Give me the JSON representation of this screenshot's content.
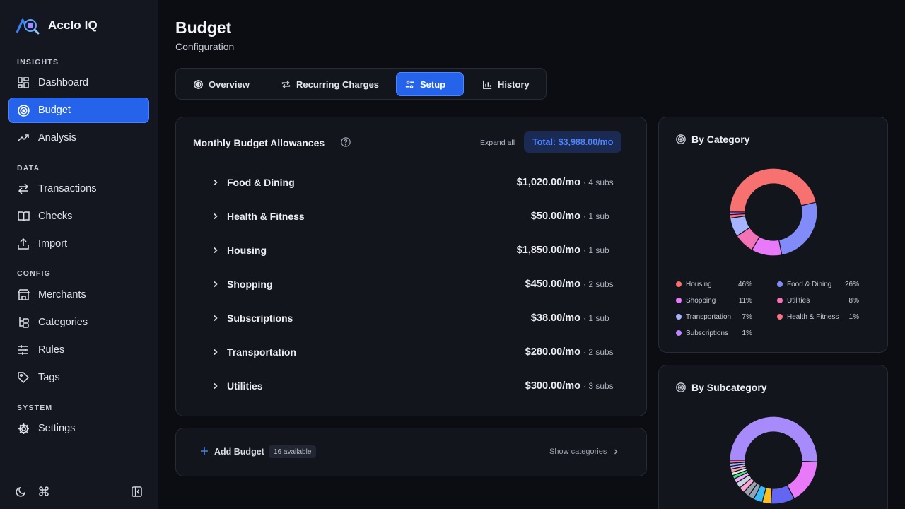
{
  "app": {
    "name": "Acclo IQ"
  },
  "sidebar": {
    "sections": {
      "insights": "INSIGHTS",
      "data": "DATA",
      "config": "CONFIG",
      "system": "SYSTEM"
    },
    "items": {
      "dashboard": "Dashboard",
      "budget": "Budget",
      "analysis": "Analysis",
      "transactions": "Transactions",
      "checks": "Checks",
      "import": "Import",
      "merchants": "Merchants",
      "categories": "Categories",
      "rules": "Rules",
      "tags": "Tags",
      "settings": "Settings"
    }
  },
  "page": {
    "title": "Budget",
    "subtitle": "Configuration"
  },
  "tabs": {
    "overview": "Overview",
    "recurring": "Recurring Charges",
    "setup": "Setup",
    "history": "History"
  },
  "allowances": {
    "title": "Monthly Budget Allowances",
    "expand_all": "Expand all",
    "total": "Total: $3,988.00/mo",
    "rows": [
      {
        "name": "Food & Dining",
        "amount": "$1,020.00/mo",
        "subs": "· 4 subs"
      },
      {
        "name": "Health & Fitness",
        "amount": "$50.00/mo",
        "subs": "· 1 sub"
      },
      {
        "name": "Housing",
        "amount": "$1,850.00/mo",
        "subs": "· 1 sub"
      },
      {
        "name": "Shopping",
        "amount": "$450.00/mo",
        "subs": "· 2 subs"
      },
      {
        "name": "Subscriptions",
        "amount": "$38.00/mo",
        "subs": "· 1 sub"
      },
      {
        "name": "Transportation",
        "amount": "$280.00/mo",
        "subs": "· 2 subs"
      },
      {
        "name": "Utilities",
        "amount": "$300.00/mo",
        "subs": "· 3 subs"
      }
    ]
  },
  "add_budget": {
    "label": "Add Budget",
    "available": "16 available",
    "show_categories": "Show categories"
  },
  "by_category": {
    "title": "By Category",
    "legend": [
      {
        "name": "Housing",
        "pct": "46%",
        "color": "#f87171"
      },
      {
        "name": "Food & Dining",
        "pct": "26%",
        "color": "#818cf8"
      },
      {
        "name": "Shopping",
        "pct": "11%",
        "color": "#e879f9"
      },
      {
        "name": "Utilities",
        "pct": "8%",
        "color": "#f472b6"
      },
      {
        "name": "Transportation",
        "pct": "7%",
        "color": "#a5b4fc"
      },
      {
        "name": "Health & Fitness",
        "pct": "1%",
        "color": "#fb7185"
      },
      {
        "name": "Subscriptions",
        "pct": "1%",
        "color": "#c084fc"
      }
    ]
  },
  "by_subcategory": {
    "title": "By Subcategory"
  },
  "colors": {
    "accent": "#2563eb",
    "bg": "#0b0d12",
    "card": "#12151c"
  },
  "chart_data": [
    {
      "type": "pie",
      "title": "By Category",
      "categories": [
        "Housing",
        "Food & Dining",
        "Shopping",
        "Utilities",
        "Transportation",
        "Health & Fitness",
        "Subscriptions"
      ],
      "values": [
        1850,
        1020,
        450,
        300,
        280,
        50,
        38
      ],
      "colors": [
        "#f87171",
        "#818cf8",
        "#e879f9",
        "#f472b6",
        "#a5b4fc",
        "#fb7185",
        "#c084fc"
      ]
    },
    {
      "type": "pie",
      "title": "By Subcategory",
      "values": [
        46,
        15,
        8,
        3,
        3,
        2,
        2,
        2,
        2,
        1.5,
        1.2,
        1.1,
        1.1,
        1.0,
        1.0,
        1.0
      ],
      "colors": [
        "#a78bfa",
        "#e879f9",
        "#6366f1",
        "#fbbf24",
        "#38bdf8",
        "#94a3b8",
        "#9ca3af",
        "#f9a8d4",
        "#cbd5e1",
        "#f0abfc",
        "#4ade80",
        "#e2e8f0",
        "#fda4af",
        "#c4b5fd",
        "#a5b4fc",
        "#f472b6"
      ]
    }
  ]
}
